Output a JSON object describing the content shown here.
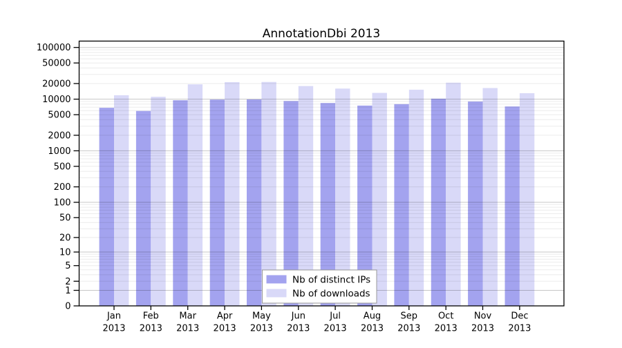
{
  "chart_data": {
    "type": "bar",
    "title": "AnnotationDbi 2013",
    "categories": [
      {
        "month": "Jan",
        "year": "2013"
      },
      {
        "month": "Feb",
        "year": "2013"
      },
      {
        "month": "Mar",
        "year": "2013"
      },
      {
        "month": "Apr",
        "year": "2013"
      },
      {
        "month": "May",
        "year": "2013"
      },
      {
        "month": "Jun",
        "year": "2013"
      },
      {
        "month": "Jul",
        "year": "2013"
      },
      {
        "month": "Aug",
        "year": "2013"
      },
      {
        "month": "Sep",
        "year": "2013"
      },
      {
        "month": "Oct",
        "year": "2013"
      },
      {
        "month": "Nov",
        "year": "2013"
      },
      {
        "month": "Dec",
        "year": "2013"
      }
    ],
    "series": [
      {
        "name": "Nb of distinct IPs",
        "color": "#a3a3ef",
        "values": [
          6800,
          5900,
          9500,
          9800,
          9900,
          9200,
          8400,
          7500,
          8000,
          10200,
          9000,
          7200
        ]
      },
      {
        "name": "Nb of downloads",
        "color": "#d9d9f8",
        "values": [
          11900,
          11100,
          19300,
          21300,
          21500,
          17900,
          16000,
          13200,
          15200,
          20800,
          16400,
          13000
        ]
      }
    ],
    "y_axis": {
      "ticks": [
        0,
        1,
        2,
        5,
        10,
        20,
        50,
        100,
        200,
        500,
        1000,
        2000,
        5000,
        10000,
        20000,
        50000,
        100000
      ],
      "scale": "log10(1+x)",
      "range": [
        0,
        100000
      ]
    },
    "legend": {
      "position": "bottom-center",
      "entries": [
        "Nb of distinct IPs",
        "Nb of downloads"
      ]
    },
    "grid": {
      "orientation": "horizontal",
      "major_color": "rgba(0,0,0,0.22)",
      "minor_color": "rgba(0,0,0,0.08)",
      "drawn_over_bars": true
    },
    "colors": {
      "axis": "#000000",
      "background": "#ffffff",
      "legend_border": "#999999"
    }
  }
}
